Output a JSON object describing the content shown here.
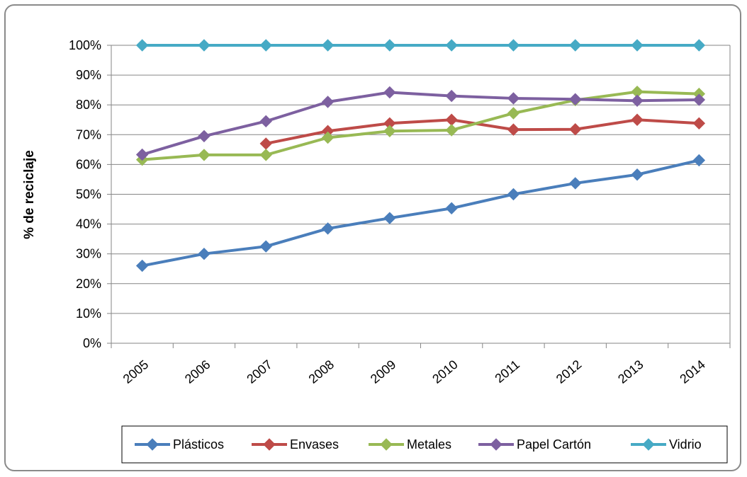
{
  "chart_data": {
    "type": "line",
    "title": "",
    "xlabel": "",
    "ylabel": "% de reciclaje",
    "ylim": [
      0,
      100
    ],
    "y_tick_labels": [
      "0%",
      "10%",
      "20%",
      "30%",
      "40%",
      "50%",
      "60%",
      "70%",
      "80%",
      "90%",
      "100%"
    ],
    "categories": [
      "2005",
      "2006",
      "2007",
      "2008",
      "2009",
      "2010",
      "2011",
      "2012",
      "2013",
      "2014"
    ],
    "grid": "horizontal",
    "legend_position": "bottom",
    "series": [
      {
        "name": "Plásticos",
        "color": "#4a7ebb",
        "values": [
          26,
          30,
          32.5,
          38.5,
          42,
          45.3,
          50,
          53.7,
          56.6,
          61.4
        ]
      },
      {
        "name": "Envases",
        "color": "#be4b48",
        "values": [
          null,
          null,
          67,
          71.2,
          73.8,
          75,
          71.7,
          71.8,
          75,
          73.8
        ]
      },
      {
        "name": "Metales",
        "color": "#98b954",
        "values": [
          61.6,
          63.2,
          63.2,
          69,
          71.2,
          71.5,
          77.2,
          81.6,
          84.4,
          83.7
        ]
      },
      {
        "name": "Papel Cartón",
        "color": "#7d60a0",
        "values": [
          63.3,
          69.5,
          74.5,
          81,
          84.2,
          83,
          82.2,
          81.9,
          81.4,
          81.7
        ]
      },
      {
        "name": "Vidrio",
        "color": "#46aac5",
        "values": [
          100,
          100,
          100,
          100,
          100,
          100,
          100,
          100,
          100,
          100
        ]
      }
    ]
  }
}
